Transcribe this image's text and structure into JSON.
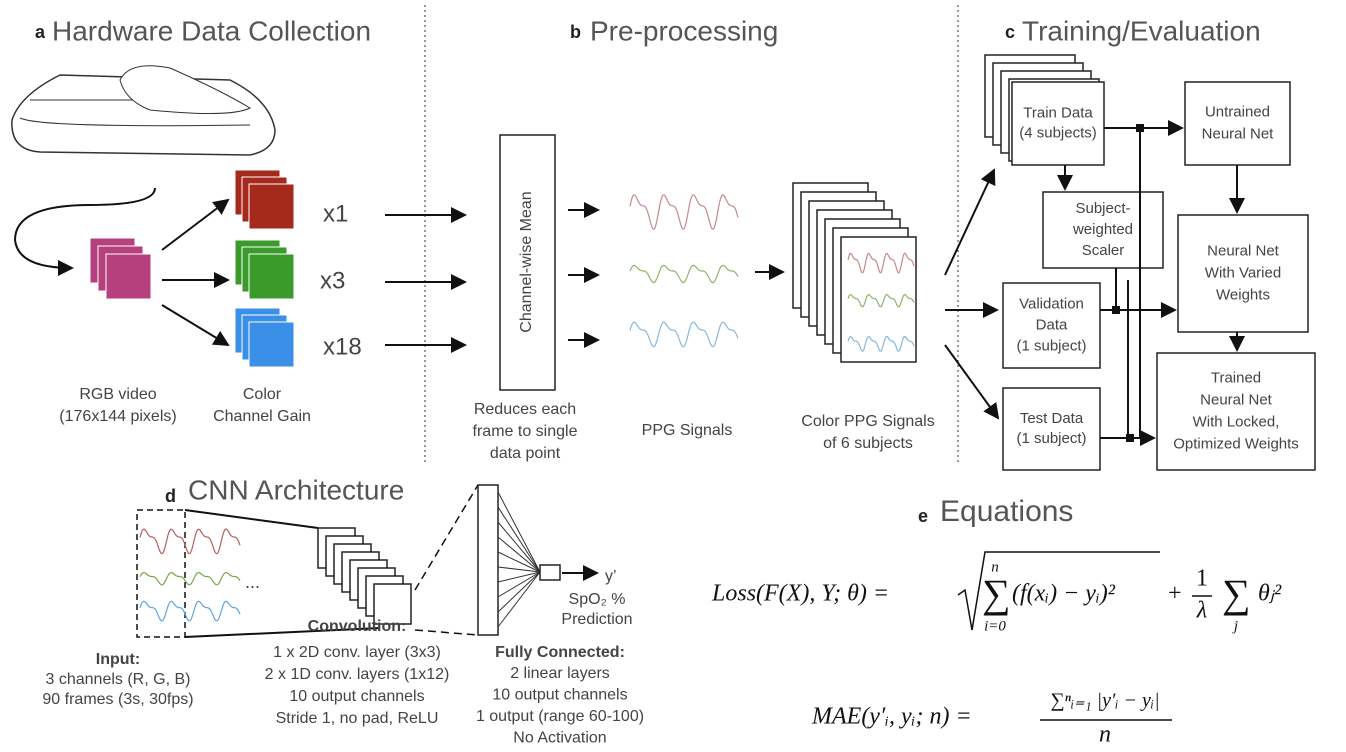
{
  "panel_a": {
    "letter": "a",
    "title": "Hardware Data Collection",
    "gains": [
      "x1",
      "x3",
      "x18"
    ],
    "video_label": [
      "RGB video",
      "(176x144 pixels)"
    ],
    "gain_label": [
      "Color",
      "Channel Gain"
    ]
  },
  "panel_b": {
    "letter": "b",
    "title": "Pre-processing",
    "mean_box": "Channel-wise Mean",
    "mean_caption": [
      "Reduces each",
      "frame to single",
      "data point"
    ],
    "ppg_caption": "PPG Signals",
    "color_caption": [
      "Color PPG Signals",
      "of 6 subjects"
    ]
  },
  "panel_c": {
    "letter": "c",
    "title": "Training/Evaluation",
    "train": [
      "Train Data",
      "(4 subjects)"
    ],
    "untrained": [
      "Untrained",
      "Neural Net"
    ],
    "scaler": [
      "Subject-",
      "weighted",
      "Scaler"
    ],
    "varied": [
      "Neural Net",
      "With Varied",
      "Weights"
    ],
    "validation": [
      "Validation",
      "Data",
      "(1 subject)"
    ],
    "test": [
      "Test Data",
      "(1 subject)"
    ],
    "trained": [
      "Trained",
      "Neural Net",
      "With Locked,",
      "Optimized Weights"
    ]
  },
  "panel_d": {
    "letter": "d",
    "title": "CNN Architecture",
    "ellipsis": "...",
    "output": "y’",
    "prediction": [
      "SpO₂ %",
      "Prediction"
    ],
    "input": {
      "heading": "Input:",
      "lines": [
        "3 channels (R, G, B)",
        "90 frames (3s, 30fps)"
      ]
    },
    "convolution": {
      "heading": "Convolution:",
      "lines": [
        "1 x 2D conv. layer (3x3)",
        "2 x 1D conv. layers (1x12)",
        "10 output channels",
        "Stride 1, no pad, ReLU"
      ]
    },
    "fully_connected": {
      "heading": "Fully Connected:",
      "lines": [
        "2 linear layers",
        "10 output channels",
        "1 output (range 60-100)",
        "No Activation"
      ]
    }
  },
  "panel_e": {
    "letter": "e",
    "title": "Equations",
    "loss": {
      "lhs": "Loss(F(X), Y; θ) =",
      "sigma": "∑",
      "upper": "n",
      "lower": "i=0",
      "term": "(f(xᵢ) − yᵢ)²",
      "plus": "+",
      "frac_num": "1",
      "frac_den": "λ",
      "lower2": "j",
      "term2": "θⱼ²"
    },
    "mae": {
      "lhs": "MAE(y′ᵢ, yᵢ; n) =",
      "numerator": "∑ⁿᵢ₌₁ |y′ᵢ − yᵢ|",
      "denominator": "n"
    }
  }
}
